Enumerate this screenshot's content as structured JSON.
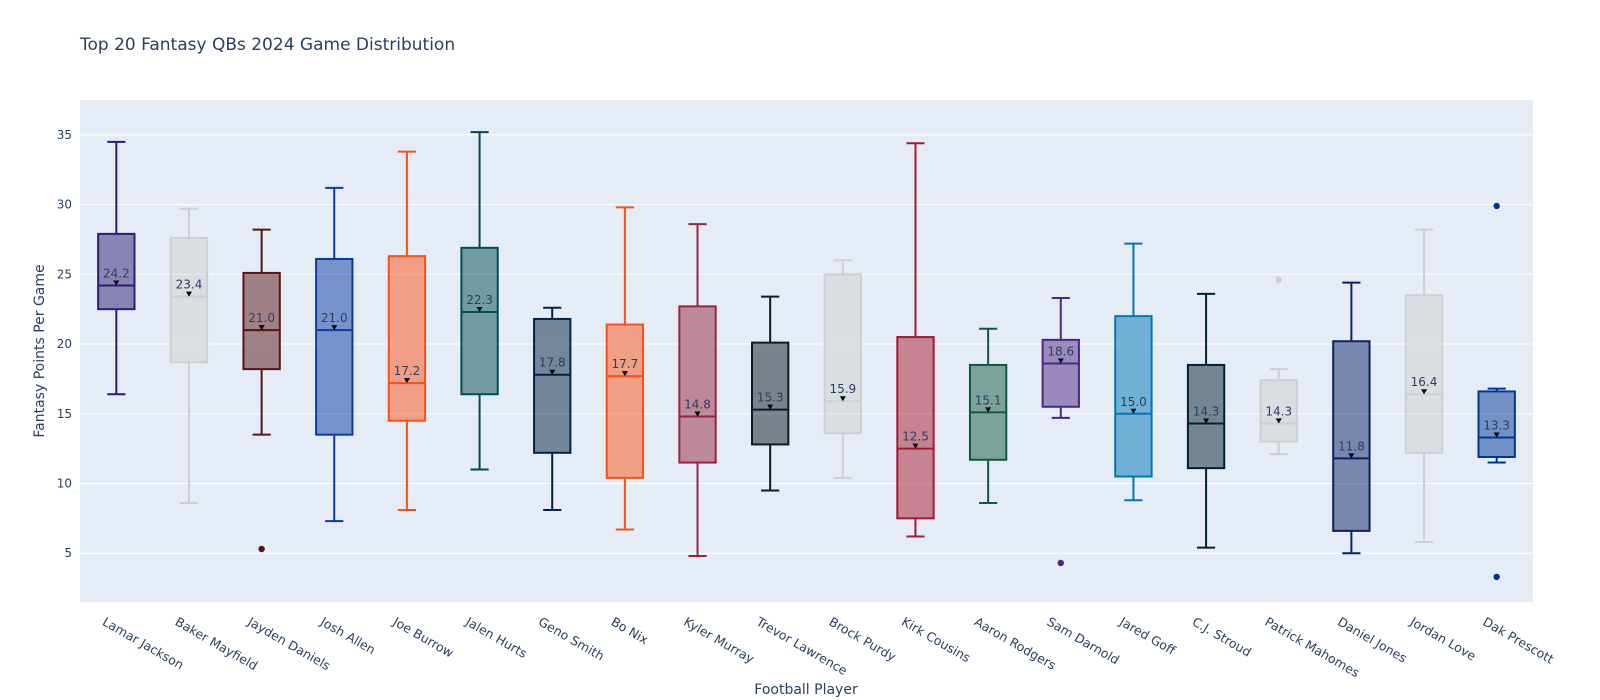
{
  "chart_data": {
    "type": "box",
    "title": "Top 20 Fantasy QBs 2024 Game Distribution",
    "xlabel": "Football Player",
    "ylabel": "Fantasy Points Per Game",
    "ylim": [
      1.5,
      37.5
    ],
    "yticks": [
      5,
      10,
      15,
      20,
      25,
      30,
      35
    ],
    "grid": true,
    "legend": "none",
    "plot_background": "#e5ecf6",
    "series": [
      {
        "category": "Lamar Jackson",
        "color": "#2b1d74",
        "min": 16.4,
        "q1": 22.5,
        "median": 24.2,
        "q3": 27.9,
        "max": 34.5,
        "mean": 24.2,
        "outliers": []
      },
      {
        "category": "Baker Mayfield",
        "color": "#cfcfcf",
        "min": 8.6,
        "q1": 18.7,
        "median": 23.4,
        "q3": 27.6,
        "max": 29.7,
        "mean": 23.4,
        "outliers": []
      },
      {
        "category": "Jayden Daniels",
        "color": "#5a1414",
        "min": 13.5,
        "q1": 18.2,
        "median": 21.0,
        "q3": 25.1,
        "max": 28.2,
        "mean": 21.0,
        "outliers": [
          5.3
        ]
      },
      {
        "category": "Josh Allen",
        "color": "#0b3aa0",
        "min": 7.3,
        "q1": 13.5,
        "median": 21.0,
        "q3": 26.1,
        "max": 31.2,
        "mean": 21.0,
        "outliers": []
      },
      {
        "category": "Joe Burrow",
        "color": "#fb4f14",
        "min": 8.1,
        "q1": 14.5,
        "median": 17.2,
        "q3": 26.3,
        "max": 33.8,
        "mean": 17.2,
        "outliers": []
      },
      {
        "category": "Jalen Hurts",
        "color": "#004c54",
        "min": 11.0,
        "q1": 16.4,
        "median": 22.3,
        "q3": 26.9,
        "max": 35.2,
        "mean": 22.3,
        "outliers": []
      },
      {
        "category": "Geno Smith",
        "color": "#002244",
        "min": 8.1,
        "q1": 12.2,
        "median": 17.8,
        "q3": 21.8,
        "max": 22.6,
        "mean": 17.8,
        "outliers": []
      },
      {
        "category": "Bo Nix",
        "color": "#fb4f14",
        "min": 6.7,
        "q1": 10.4,
        "median": 17.7,
        "q3": 21.4,
        "max": 29.8,
        "mean": 17.7,
        "outliers": []
      },
      {
        "category": "Kyler Murray",
        "color": "#97233f",
        "min": 4.8,
        "q1": 11.5,
        "median": 14.8,
        "q3": 22.7,
        "max": 28.6,
        "mean": 14.8,
        "outliers": []
      },
      {
        "category": "Trevor Lawrence",
        "color": "#101820",
        "min": 9.5,
        "q1": 12.8,
        "median": 15.3,
        "q3": 20.1,
        "max": 23.4,
        "mean": 15.3,
        "outliers": []
      },
      {
        "category": "Brock Purdy",
        "color": "#cfcfcf",
        "min": 10.4,
        "q1": 13.6,
        "median": 15.9,
        "q3": 25.0,
        "max": 26.0,
        "mean": 15.9,
        "outliers": []
      },
      {
        "category": "Kirk Cousins",
        "color": "#a71930",
        "min": 6.2,
        "q1": 7.5,
        "median": 12.5,
        "q3": 20.5,
        "max": 34.4,
        "mean": 12.5,
        "outliers": []
      },
      {
        "category": "Aaron Rodgers",
        "color": "#125740",
        "min": 8.6,
        "q1": 11.7,
        "median": 15.1,
        "q3": 18.5,
        "max": 21.1,
        "mean": 15.1,
        "outliers": []
      },
      {
        "category": "Sam Darnold",
        "color": "#4f2683",
        "min": 14.7,
        "q1": 15.5,
        "median": 18.6,
        "q3": 20.3,
        "max": 23.3,
        "mean": 18.6,
        "outliers": [
          4.3
        ]
      },
      {
        "category": "Jared Goff",
        "color": "#0076b6",
        "min": 8.8,
        "q1": 10.5,
        "median": 15.0,
        "q3": 22.0,
        "max": 27.2,
        "mean": 15.0,
        "outliers": []
      },
      {
        "category": "C.J. Stroud",
        "color": "#03202f",
        "min": 5.4,
        "q1": 11.1,
        "median": 14.3,
        "q3": 18.5,
        "max": 23.6,
        "mean": 14.3,
        "outliers": []
      },
      {
        "category": "Patrick Mahomes",
        "color": "#cfcfcf",
        "min": 12.1,
        "q1": 13.0,
        "median": 14.3,
        "q3": 17.4,
        "max": 18.2,
        "mean": 14.3,
        "outliers": [
          24.6
        ]
      },
      {
        "category": "Daniel Jones",
        "color": "#0b2265",
        "min": 5.0,
        "q1": 6.6,
        "median": 11.8,
        "q3": 20.2,
        "max": 24.4,
        "mean": 11.8,
        "outliers": []
      },
      {
        "category": "Jordan Love",
        "color": "#cfcfcf",
        "min": 5.8,
        "q1": 12.2,
        "median": 16.4,
        "q3": 23.5,
        "max": 28.2,
        "mean": 16.4,
        "outliers": []
      },
      {
        "category": "Dak Prescott",
        "color": "#003594",
        "min": 11.5,
        "q1": 11.9,
        "median": 13.3,
        "q3": 16.6,
        "max": 16.8,
        "mean": 13.3,
        "outliers": [
          29.9,
          3.3
        ]
      }
    ]
  }
}
